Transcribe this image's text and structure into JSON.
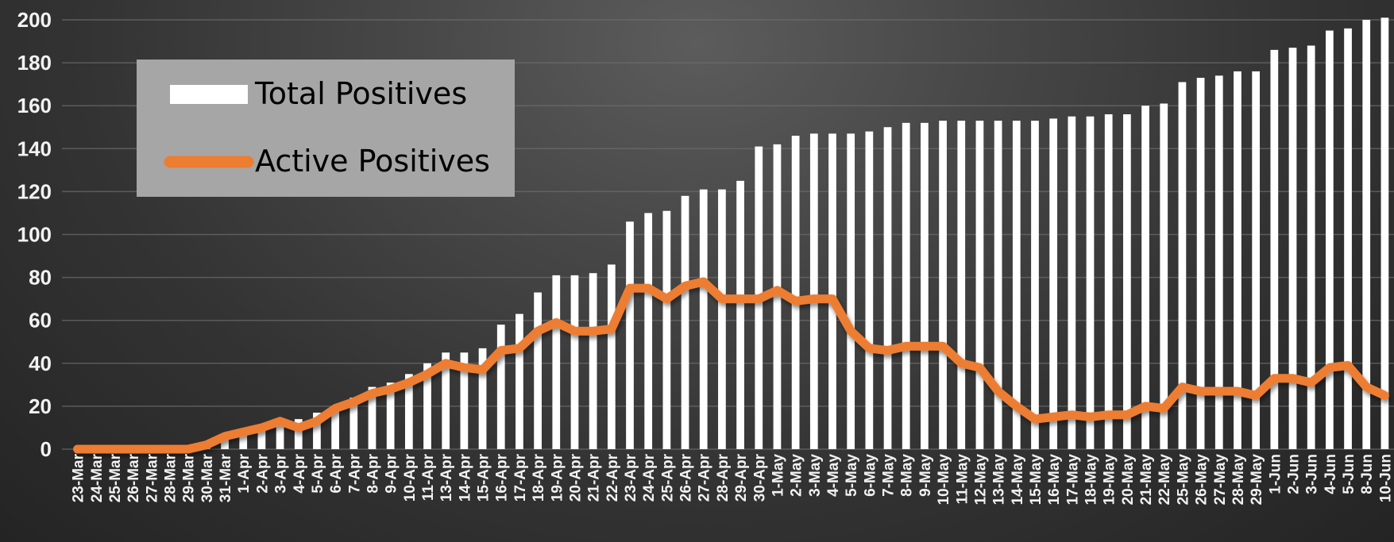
{
  "chart_data": {
    "type": "bar",
    "categories": [
      "23-Mar",
      "24-Mar",
      "25-Mar",
      "26-Mar",
      "27-Mar",
      "28-Mar",
      "29-Mar",
      "30-Mar",
      "31-Mar",
      "1-Apr",
      "2-Apr",
      "3-Apr",
      "4-Apr",
      "5-Apr",
      "6-Apr",
      "7-Apr",
      "8-Apr",
      "9-Apr",
      "10-Apr",
      "11-Apr",
      "13-Apr",
      "14-Apr",
      "15-Apr",
      "16-Apr",
      "17-Apr",
      "18-Apr",
      "19-Apr",
      "20-Apr",
      "21-Apr",
      "22-Apr",
      "23-Apr",
      "24-Apr",
      "25-Apr",
      "26-Apr",
      "27-Apr",
      "28-Apr",
      "29-Apr",
      "30-Apr",
      "1-May",
      "2-May",
      "3-May",
      "4-May",
      "5-May",
      "6-May",
      "7-May",
      "8-May",
      "9-May",
      "10-May",
      "11-May",
      "12-May",
      "13-May",
      "14-May",
      "15-May",
      "16-May",
      "17-May",
      "18-May",
      "19-May",
      "20-May",
      "21-May",
      "22-May",
      "25-May",
      "26-May",
      "27-May",
      "28-May",
      "29-May",
      "1-Jun",
      "2-Jun",
      "3-Jun",
      "4-Jun",
      "5-Jun",
      "8-Jun",
      "10-Jun"
    ],
    "series": [
      {
        "name": "Total Positives",
        "kind": "bar",
        "color": "#ffffff",
        "values": [
          0,
          0,
          0,
          0,
          0,
          0,
          0,
          1,
          5,
          7,
          10,
          13,
          14,
          17,
          20,
          24,
          29,
          31,
          35,
          40,
          45,
          45,
          47,
          58,
          63,
          73,
          81,
          81,
          82,
          86,
          106,
          110,
          111,
          118,
          121,
          121,
          125,
          141,
          142,
          146,
          147,
          147,
          147,
          148,
          150,
          152,
          152,
          153,
          153,
          153,
          153,
          153,
          153,
          154,
          155,
          155,
          156,
          156,
          160,
          161,
          171,
          173,
          174,
          176,
          176,
          186,
          187,
          188,
          195,
          196,
          200,
          201
        ]
      },
      {
        "name": "Active Positives",
        "kind": "line",
        "color": "#ed7d31",
        "values": [
          0,
          0,
          0,
          0,
          0,
          0,
          0,
          2,
          6,
          8,
          10,
          13,
          10,
          13,
          19,
          22,
          26,
          28,
          31,
          35,
          40,
          38,
          37,
          46,
          47,
          55,
          59,
          55,
          55,
          56,
          75,
          75,
          70,
          76,
          78,
          70,
          70,
          70,
          74,
          69,
          70,
          70,
          55,
          47,
          46,
          48,
          48,
          48,
          40,
          38,
          27,
          20,
          14,
          15,
          16,
          15,
          16,
          16,
          20,
          19,
          29,
          27,
          27,
          27,
          25,
          33,
          33,
          31,
          38,
          39,
          29,
          25
        ]
      }
    ],
    "y_axis": {
      "ticks": [
        "0",
        "20",
        "40",
        "60",
        "80",
        "100",
        "120",
        "140",
        "160",
        "180",
        "200"
      ],
      "ylim": [
        0,
        200
      ]
    },
    "grid": true,
    "legend_position": "top-left",
    "title": "",
    "xlabel": "",
    "ylabel": ""
  }
}
